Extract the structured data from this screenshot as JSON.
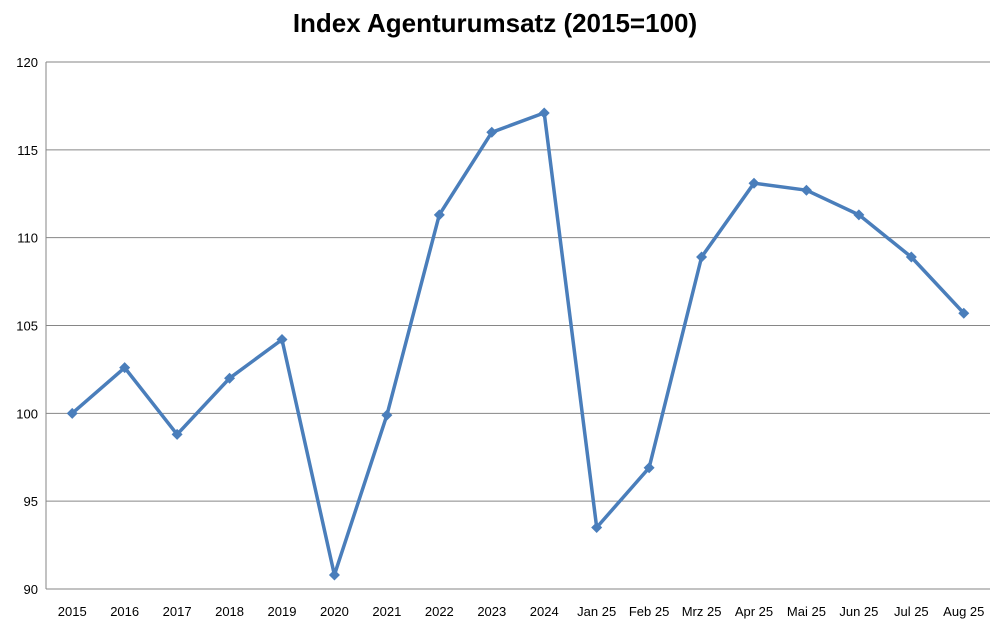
{
  "chart_data": {
    "type": "line",
    "title": "Index Agenturumsatz (2015=100)",
    "xlabel": "",
    "ylabel": "",
    "categories": [
      "2015",
      "2016",
      "2017",
      "2018",
      "2019",
      "2020",
      "2021",
      "2022",
      "2023",
      "2024",
      "Jan 25",
      "Feb 25",
      "Mrz 25",
      "Apr 25",
      "Mai 25",
      "Jun 25",
      "Jul 25",
      "Aug 25"
    ],
    "series": [
      {
        "values": [
          100.0,
          102.6,
          98.8,
          102.0,
          104.2,
          90.8,
          99.9,
          111.3,
          116.0,
          117.1,
          93.5,
          96.9,
          108.9,
          113.1,
          112.7,
          111.3,
          108.9,
          105.7
        ]
      }
    ],
    "ylim": [
      90,
      120
    ],
    "yticks": [
      "90",
      "95",
      "100",
      "105",
      "110",
      "115",
      "120"
    ],
    "grid": true,
    "legend": "none",
    "marker": "diamond",
    "colors": {
      "line": "#4a7ebb",
      "grid": "#868686",
      "axis": "#868686"
    }
  }
}
